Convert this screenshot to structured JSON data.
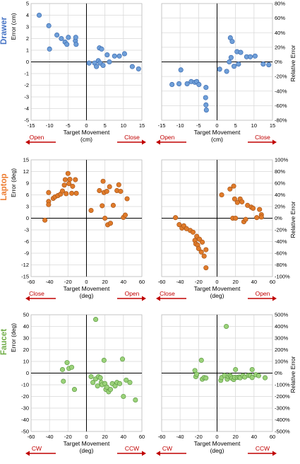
{
  "colors": {
    "drawer": "#6f9fd8",
    "drawer_stroke": "#3a6ab0",
    "laptop": "#e07b2a",
    "laptop_stroke": "#a8561a",
    "faucet": "#9bd27a",
    "faucet_stroke": "#5e9a44",
    "row_drawer": "#4472c4",
    "row_laptop": "#ed7d31",
    "row_faucet": "#70ad47",
    "arrow": "#c00000",
    "grid": "#d9d9d9"
  },
  "rows": [
    {
      "label": "Drawer",
      "xlabel_line1": "Target Movement",
      "xlabel_line2": "(cm)",
      "left_direction": "Open",
      "right_direction": "Close"
    },
    {
      "label": "Laptop",
      "xlabel_line1": "Target Movement",
      "xlabel_line2": "(deg)",
      "left_direction": "Close",
      "right_direction": "Open"
    },
    {
      "label": "Faucet",
      "xlabel_line1": "Target Movement",
      "xlabel_line2": "(deg)",
      "left_direction": "CW",
      "right_direction": "CCW"
    }
  ],
  "chart_data": [
    {
      "type": "scatter",
      "row": "Drawer",
      "panel": "absolute",
      "ylabel": "Error (cm)",
      "xlabel": "Target Movement (cm)",
      "xlim": [
        -15,
        15
      ],
      "ylim": [
        -5,
        5
      ],
      "x_ticks": [
        -15,
        -10,
        -5,
        0,
        5,
        10,
        15
      ],
      "y_ticks": [
        -5,
        -4,
        -3,
        -2,
        -1,
        0,
        1,
        2,
        3,
        4,
        5
      ],
      "y_tick_labels": [
        "-5",
        "-4",
        "-3",
        "-2",
        "-1",
        "0",
        "1",
        "2",
        "3",
        "4",
        "5"
      ],
      "grid": true,
      "points": [
        [
          -12.8,
          4.0
        ],
        [
          -10.2,
          3.1
        ],
        [
          -10.0,
          1.1
        ],
        [
          -8.0,
          2.3
        ],
        [
          -6.8,
          2.0
        ],
        [
          -5.8,
          1.7
        ],
        [
          -5.3,
          1.5
        ],
        [
          -4.9,
          2.1
        ],
        [
          -3.0,
          1.8
        ],
        [
          -2.9,
          2.1
        ],
        [
          -2.8,
          1.5
        ],
        [
          0.7,
          -0.1
        ],
        [
          2.2,
          -0.1
        ],
        [
          2.7,
          -0.4
        ],
        [
          3.2,
          0.1
        ],
        [
          3.5,
          1.2
        ],
        [
          3.7,
          -0.1
        ],
        [
          4.1,
          1.1
        ],
        [
          4.5,
          -0.3
        ],
        [
          5.6,
          0.6
        ],
        [
          6.2,
          0.0
        ],
        [
          7.6,
          0.5
        ],
        [
          8.9,
          0.5
        ],
        [
          10.3,
          0.7
        ],
        [
          12.4,
          -0.4
        ],
        [
          14.1,
          -0.6
        ]
      ]
    },
    {
      "type": "scatter",
      "row": "Drawer",
      "panel": "relative",
      "ylabel": "Relative Error",
      "xlabel": "Target Movement (cm)",
      "xlim": [
        -15,
        15
      ],
      "ylim": [
        -80,
        80
      ],
      "x_ticks": [
        -15,
        -10,
        -5,
        0,
        5,
        10,
        15
      ],
      "y_ticks": [
        -80,
        -60,
        -40,
        -20,
        0,
        20,
        40,
        60,
        80
      ],
      "y_tick_labels": [
        "-80%",
        "-60%",
        "-40%",
        "-20%",
        "0%",
        "20%",
        "40%",
        "60%",
        "80%"
      ],
      "grid": true,
      "points": [
        [
          -12.2,
          -31
        ],
        [
          -10.3,
          -30
        ],
        [
          -9.8,
          -11
        ],
        [
          -8.1,
          -30
        ],
        [
          -7.0,
          -27
        ],
        [
          -6.0,
          -28
        ],
        [
          -5.5,
          -27
        ],
        [
          -4.9,
          -31
        ],
        [
          -3.0,
          -35
        ],
        [
          -3.1,
          -49
        ],
        [
          -3.0,
          -59
        ],
        [
          -2.9,
          -66
        ],
        [
          0.7,
          -10
        ],
        [
          2.6,
          -13
        ],
        [
          3.3,
          0
        ],
        [
          3.6,
          33
        ],
        [
          3.8,
          6
        ],
        [
          4.1,
          28
        ],
        [
          4.6,
          -6
        ],
        [
          5.4,
          14
        ],
        [
          5.8,
          -3
        ],
        [
          6.4,
          13
        ],
        [
          8.0,
          7
        ],
        [
          9.0,
          7
        ],
        [
          10.3,
          8
        ],
        [
          12.5,
          -3
        ],
        [
          14.0,
          -4
        ]
      ]
    },
    {
      "type": "scatter",
      "row": "Laptop",
      "panel": "absolute",
      "ylabel": "Error (deg)",
      "xlabel": "Target Movement (deg)",
      "xlim": [
        -60,
        60
      ],
      "ylim": [
        -15,
        15
      ],
      "x_ticks": [
        -60,
        -40,
        -20,
        0,
        20,
        40,
        60
      ],
      "y_ticks": [
        -15,
        -12,
        -9,
        -6,
        -3,
        0,
        3,
        6,
        9,
        12,
        15
      ],
      "y_tick_labels": [
        "-15",
        "-12",
        "-9",
        "-6",
        "-3",
        "0",
        "3",
        "6",
        "9",
        "12",
        "15"
      ],
      "grid": true,
      "points": [
        [
          -45,
          -0.5
        ],
        [
          -41,
          6.6
        ],
        [
          -41,
          4.3
        ],
        [
          -41,
          3.5
        ],
        [
          -36,
          5.1
        ],
        [
          -34,
          5.5
        ],
        [
          -31,
          5.8
        ],
        [
          -28,
          6.2
        ],
        [
          -26,
          7.0
        ],
        [
          -24,
          8.5
        ],
        [
          -23,
          9.9
        ],
        [
          -22,
          6.3
        ],
        [
          -20,
          11.5
        ],
        [
          -19,
          8.9
        ],
        [
          -18,
          10.0
        ],
        [
          -16,
          6.4
        ],
        [
          -15,
          8.2
        ],
        [
          -12,
          9.9
        ],
        [
          -11,
          6.4
        ],
        [
          5,
          2.0
        ],
        [
          14,
          7.1
        ],
        [
          17,
          3.2
        ],
        [
          18,
          9.5
        ],
        [
          19,
          6.6
        ],
        [
          20,
          0.0
        ],
        [
          22,
          6.9
        ],
        [
          23,
          -1.7
        ],
        [
          25,
          8.1
        ],
        [
          26,
          -1.3
        ],
        [
          29,
          3.3
        ],
        [
          33,
          7.1
        ],
        [
          35,
          8.6
        ],
        [
          37,
          6.9
        ],
        [
          40,
          0.2
        ],
        [
          42,
          0.8
        ],
        [
          44,
          5.0
        ]
      ]
    },
    {
      "type": "scatter",
      "row": "Laptop",
      "panel": "relative",
      "ylabel": "Relative Error",
      "xlabel": "Target Movement (deg)",
      "xlim": [
        -60,
        60
      ],
      "ylim": [
        -100,
        100
      ],
      "x_ticks": [
        -60,
        -40,
        -20,
        0,
        20,
        40,
        60
      ],
      "y_ticks": [
        -100,
        -80,
        -60,
        -40,
        -20,
        0,
        20,
        40,
        60,
        80,
        100
      ],
      "y_tick_labels": [
        "-100%",
        "-80%",
        "-60%",
        "-40%",
        "-20%",
        "0%",
        "20%",
        "40%",
        "60%",
        "80%",
        "100%"
      ],
      "grid": true,
      "points": [
        [
          -45,
          1
        ],
        [
          -41,
          -11
        ],
        [
          -38,
          -17
        ],
        [
          -36,
          -13
        ],
        [
          -33,
          -18
        ],
        [
          -29,
          -21
        ],
        [
          -26,
          -24
        ],
        [
          -24,
          -38
        ],
        [
          -23,
          -44
        ],
        [
          -22,
          -31
        ],
        [
          -21,
          -46
        ],
        [
          -20,
          -52
        ],
        [
          -19,
          -36
        ],
        [
          -17,
          -58
        ],
        [
          -16,
          -41
        ],
        [
          -14,
          -65
        ],
        [
          -12,
          -54
        ],
        [
          -12,
          -85
        ],
        [
          5,
          40
        ],
        [
          14,
          50
        ],
        [
          17,
          0
        ],
        [
          18,
          55
        ],
        [
          19,
          33
        ],
        [
          20,
          0
        ],
        [
          22,
          27
        ],
        [
          25,
          33
        ],
        [
          27,
          28
        ],
        [
          29,
          -6
        ],
        [
          31,
          -2
        ],
        [
          33,
          22
        ],
        [
          37,
          19
        ],
        [
          39,
          17
        ],
        [
          43,
          1
        ],
        [
          46,
          15
        ],
        [
          48,
          6
        ],
        [
          48,
          2
        ]
      ]
    },
    {
      "type": "scatter",
      "row": "Faucet",
      "panel": "absolute",
      "ylabel": "Error (deg)",
      "xlabel": "Target Movement (deg)",
      "xlim": [
        -60,
        60
      ],
      "ylim": [
        -50,
        50
      ],
      "x_ticks": [
        -60,
        -40,
        -20,
        0,
        20,
        40,
        60
      ],
      "y_ticks": [
        -50,
        -40,
        -30,
        -20,
        -10,
        0,
        10,
        20,
        30,
        40,
        50
      ],
      "y_tick_labels": [
        "-50",
        "-40",
        "-30",
        "-20",
        "-10",
        "0",
        "10",
        "20",
        "30",
        "40",
        "50"
      ],
      "grid": true,
      "points": [
        [
          -26,
          3
        ],
        [
          -25,
          -7
        ],
        [
          -21,
          9
        ],
        [
          -19,
          4
        ],
        [
          -16,
          5
        ],
        [
          -13,
          -14
        ],
        [
          5,
          -3
        ],
        [
          7,
          -8
        ],
        [
          10,
          46
        ],
        [
          10,
          -5
        ],
        [
          12,
          -11
        ],
        [
          13,
          -3
        ],
        [
          15,
          -4
        ],
        [
          16,
          -8
        ],
        [
          17,
          -10
        ],
        [
          19,
          11
        ],
        [
          20,
          -9
        ],
        [
          21,
          -14
        ],
        [
          22,
          -12
        ],
        [
          24,
          -16
        ],
        [
          26,
          -14
        ],
        [
          28,
          -9
        ],
        [
          31,
          -11
        ],
        [
          33,
          -8
        ],
        [
          36,
          -9
        ],
        [
          39,
          12
        ],
        [
          40,
          -20
        ],
        [
          43,
          -6
        ],
        [
          47,
          -8
        ],
        [
          53,
          -23
        ]
      ]
    },
    {
      "type": "scatter",
      "row": "Faucet",
      "panel": "relative",
      "ylabel": "Relative Error",
      "xlabel": "Target Movement (deg)",
      "xlim": [
        -60,
        60
      ],
      "ylim": [
        -500,
        500
      ],
      "x_ticks": [
        -60,
        -40,
        -20,
        0,
        20,
        40,
        60
      ],
      "y_ticks": [
        -500,
        -400,
        -300,
        -200,
        -100,
        0,
        100,
        200,
        300,
        400,
        500
      ],
      "y_tick_labels": [
        "-500%",
        "-400%",
        "-300%",
        "-200%",
        "-100%",
        "0%",
        "100%",
        "200%",
        "300%",
        "400%",
        "500%"
      ],
      "grid": true,
      "points": [
        [
          -24,
          22
        ],
        [
          -23,
          -30
        ],
        [
          -22,
          -10
        ],
        [
          -17,
          110
        ],
        [
          -16,
          -52
        ],
        [
          -14,
          -38
        ],
        [
          -12,
          -42
        ],
        [
          4,
          -62
        ],
        [
          5,
          -38
        ],
        [
          8,
          -20
        ],
        [
          10,
          400
        ],
        [
          11,
          -52
        ],
        [
          12,
          -28
        ],
        [
          14,
          -20
        ],
        [
          15,
          -30
        ],
        [
          16,
          -44
        ],
        [
          18,
          -55
        ],
        [
          19,
          -36
        ],
        [
          20,
          30
        ],
        [
          22,
          -37
        ],
        [
          24,
          -33
        ],
        [
          25,
          -40
        ],
        [
          28,
          -22
        ],
        [
          30,
          -34
        ],
        [
          34,
          -20
        ],
        [
          36,
          -22
        ],
        [
          38,
          30
        ],
        [
          38,
          -38
        ],
        [
          42,
          -14
        ],
        [
          45,
          -22
        ],
        [
          52,
          -40
        ]
      ]
    }
  ]
}
